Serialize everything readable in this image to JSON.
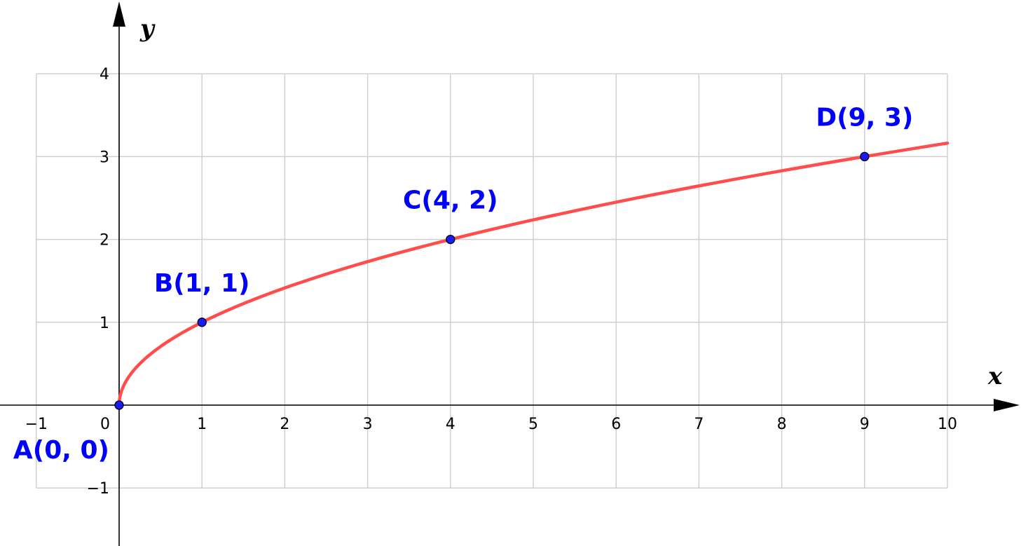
{
  "chart_data": {
    "type": "line",
    "function": "sqrt",
    "xlabel": "x",
    "ylabel": "y",
    "xlim": [
      -1,
      10
    ],
    "ylim": [
      -1,
      4
    ],
    "grid": true,
    "x_ticks": [
      "−1",
      "0",
      "1",
      "2",
      "3",
      "4",
      "5",
      "6",
      "7",
      "8",
      "9",
      "10"
    ],
    "y_ticks": [
      "−1",
      "1",
      "2",
      "3",
      "4"
    ],
    "x_tick_values": [
      -1,
      0,
      1,
      2,
      3,
      4,
      5,
      6,
      7,
      8,
      9,
      10
    ],
    "y_tick_values": [
      -1,
      1,
      2,
      3,
      4
    ],
    "series": [
      {
        "color": "#ff4c4c",
        "x": [
          0,
          0.25,
          0.5,
          1,
          2,
          3,
          4,
          5,
          6,
          7,
          8,
          9,
          10
        ],
        "y": [
          0,
          0.5,
          0.71,
          1,
          1.41,
          1.73,
          2,
          2.24,
          2.45,
          2.65,
          2.83,
          3,
          3.16
        ]
      }
    ],
    "points": [
      {
        "label": "A(0, 0)",
        "x": 0,
        "y": 0,
        "label_position": "bottom-left"
      },
      {
        "label": "B(1, 1)",
        "x": 1,
        "y": 1,
        "label_position": "top"
      },
      {
        "label": "C(4, 2)",
        "x": 4,
        "y": 2,
        "label_position": "top"
      },
      {
        "label": "D(9, 3)",
        "x": 9,
        "y": 3,
        "label_position": "top"
      }
    ],
    "colors": {
      "curve": "#ff4c4c",
      "points": "#1a1aff",
      "labels": "#0000ff",
      "grid": "#d0d0d0",
      "axes": "#000000"
    }
  }
}
